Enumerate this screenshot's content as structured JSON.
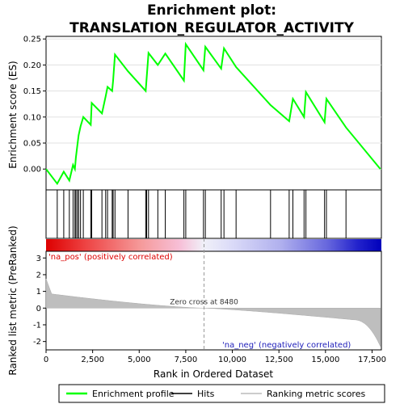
{
  "chart_data": {
    "type": "line",
    "title_line1": "Enrichment plot:",
    "title_line2": "TRANSLATION_REGULATOR_ACTIVITY",
    "xlabel": "Rank in Ordered Dataset",
    "ylabel_top": "Enrichment score (ES)",
    "ylabel_bottom": "Ranked list metric (PreRanked)",
    "xlim": [
      0,
      18000
    ],
    "ylim_es": [
      -0.04,
      0.255
    ],
    "ylim_metric": [
      -2.5,
      3.4
    ],
    "x_ticks": [
      0,
      2500,
      5000,
      7500,
      10000,
      12500,
      15000,
      17500
    ],
    "x_tick_labels": [
      "0",
      "2,500",
      "5,000",
      "7,500",
      "10,000",
      "12,500",
      "15,000",
      "17,500"
    ],
    "es_ticks": [
      0.0,
      0.05,
      0.1,
      0.15,
      0.2,
      0.25
    ],
    "es_tick_labels": [
      "0.00",
      "0.05",
      "0.10",
      "0.15",
      "0.20",
      "0.25"
    ],
    "metric_ticks": [
      -2,
      -1,
      0,
      1,
      2,
      3
    ],
    "metric_tick_labels": [
      "-2",
      "-1",
      "0",
      "1",
      "2",
      "3"
    ],
    "hits": [
      600,
      950,
      1250,
      1450,
      1550,
      1600,
      1680,
      1750,
      1850,
      2000,
      2400,
      2450,
      3000,
      3200,
      3300,
      3550,
      3600,
      3700,
      4400,
      5350,
      5400,
      5500,
      6000,
      6400,
      7400,
      7500,
      8450,
      8550,
      9400,
      9550,
      10200,
      12050,
      13050,
      13250,
      13850,
      13950,
      14950,
      15050,
      16100
    ],
    "es_points": [
      [
        0,
        0.0
      ],
      [
        600,
        -0.028
      ],
      [
        950,
        -0.005
      ],
      [
        1250,
        -0.022
      ],
      [
        1450,
        0.008
      ],
      [
        1550,
        0.0
      ],
      [
        1600,
        0.022
      ],
      [
        1680,
        0.045
      ],
      [
        1750,
        0.065
      ],
      [
        1850,
        0.082
      ],
      [
        2000,
        0.1
      ],
      [
        2400,
        0.085
      ],
      [
        2450,
        0.127
      ],
      [
        3000,
        0.107
      ],
      [
        3200,
        0.14
      ],
      [
        3300,
        0.158
      ],
      [
        3550,
        0.15
      ],
      [
        3600,
        0.17
      ],
      [
        3700,
        0.22
      ],
      [
        4400,
        0.188
      ],
      [
        5350,
        0.15
      ],
      [
        5400,
        0.175
      ],
      [
        5500,
        0.223
      ],
      [
        6000,
        0.2
      ],
      [
        6400,
        0.222
      ],
      [
        7400,
        0.17
      ],
      [
        7500,
        0.24
      ],
      [
        8450,
        0.19
      ],
      [
        8550,
        0.235
      ],
      [
        9400,
        0.193
      ],
      [
        9550,
        0.232
      ],
      [
        10200,
        0.196
      ],
      [
        12050,
        0.123
      ],
      [
        13050,
        0.092
      ],
      [
        13250,
        0.135
      ],
      [
        13850,
        0.1
      ],
      [
        13950,
        0.148
      ],
      [
        14950,
        0.09
      ],
      [
        15050,
        0.135
      ],
      [
        16100,
        0.08
      ],
      [
        17950,
        0.0
      ]
    ],
    "zero_cross_rank": 8480,
    "zero_cross_label": "Zero cross at 8480",
    "pos_label": "'na_pos' (positively correlated)",
    "neg_label": "'na_neg' (negatively correlated)",
    "legend": [
      {
        "label": "Enrichment profile",
        "color": "#00ff00"
      },
      {
        "label": "Hits",
        "color": "#000000"
      },
      {
        "label": "Ranking metric scores",
        "color": "#bbbbbb"
      }
    ],
    "colors": {
      "es_line": "#00ff00",
      "hits": "#000000",
      "metric_fill": "#bebebe",
      "pos_text": "#dd0000",
      "neg_text": "#2222bb",
      "gradient_pos": "#dd0000",
      "gradient_neg": "#0000cc"
    }
  }
}
